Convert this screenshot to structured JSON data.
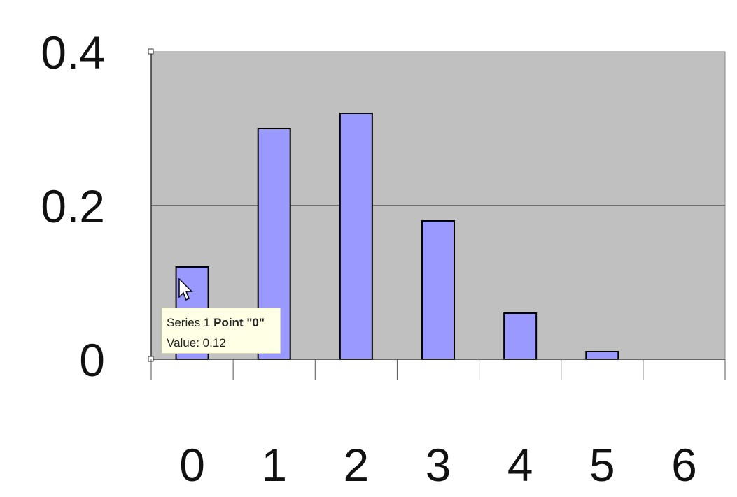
{
  "chart_data": {
    "type": "bar",
    "categories": [
      "0",
      "1",
      "2",
      "3",
      "4",
      "5",
      "6"
    ],
    "values": [
      0.12,
      0.3,
      0.32,
      0.18,
      0.06,
      0.01,
      0
    ],
    "ylim": [
      0,
      0.4
    ],
    "yticks": [
      "0",
      "0.2",
      "0.4"
    ],
    "grid": true,
    "colors": {
      "plot_bg": "#c0c0c0",
      "bar_fill": "#9999ff",
      "bar_stroke": "#000000",
      "gridline": "#555555"
    }
  },
  "tooltip": {
    "line1_prefix": "Series 1",
    "line1_point": "Point \"0\"",
    "line2": "Value: 0.12"
  },
  "cursor_icon": "arrow-pointer-icon"
}
